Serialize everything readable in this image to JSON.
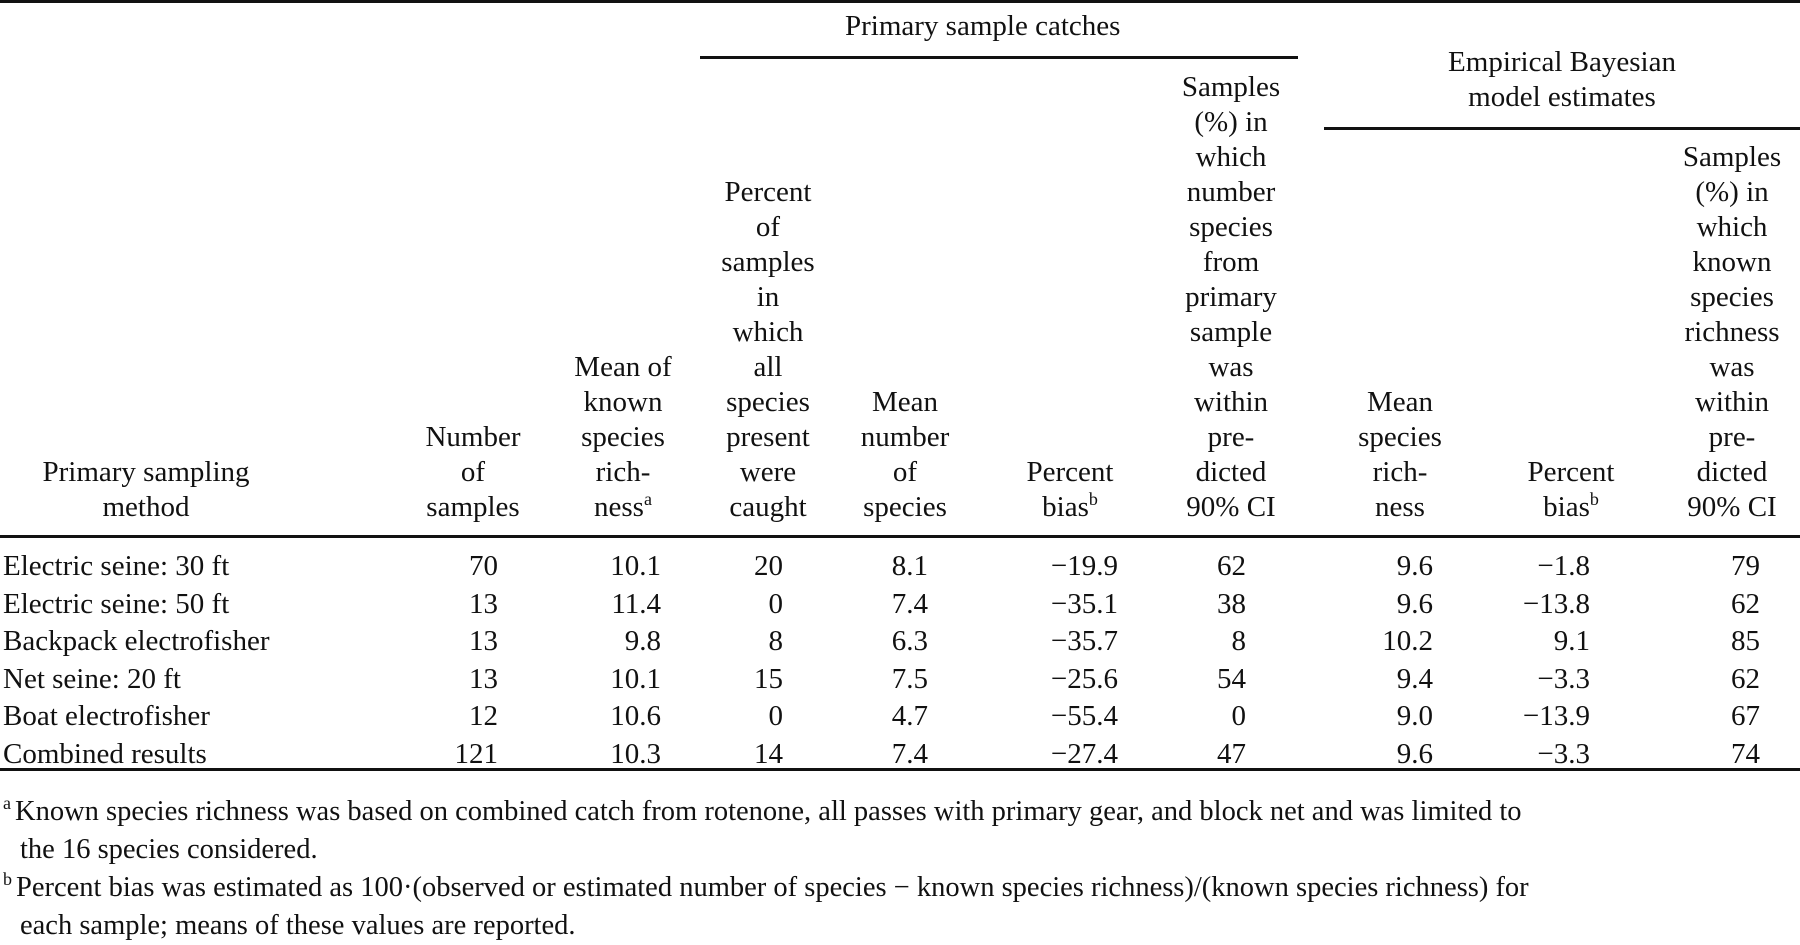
{
  "spanners": {
    "primary": "Primary sample catches",
    "bayes_line1": "Empirical Bayesian",
    "bayes_line2": "model estimates"
  },
  "columns": [
    {
      "lines": [
        "Primary sampling",
        "method"
      ]
    },
    {
      "lines": [
        "Number",
        "of",
        "samples"
      ]
    },
    {
      "lines": [
        "Mean of",
        "known",
        "species",
        "rich-",
        "ness"
      ],
      "sup": "a"
    },
    {
      "lines": [
        "Percent",
        "of",
        "samples",
        "in",
        "which",
        "all",
        "species",
        "present",
        "were",
        "caught"
      ]
    },
    {
      "lines": [
        "Mean",
        "number",
        "of",
        "species"
      ]
    },
    {
      "lines": [
        "Percent",
        "bias"
      ],
      "sup": "b"
    },
    {
      "lines": [
        "Samples",
        "(%) in",
        "which",
        "number",
        "species",
        "from",
        "primary",
        "sample",
        "was",
        "within",
        "pre-",
        "dicted",
        "90% CI"
      ]
    },
    {
      "lines": [
        "Mean",
        "species",
        "rich-",
        "ness"
      ]
    },
    {
      "lines": [
        "Percent",
        "bias"
      ],
      "sup": "b"
    },
    {
      "lines": [
        "Samples",
        "(%) in",
        "which",
        "known",
        "species",
        "richness",
        "was",
        "within",
        "pre-",
        "dicted",
        "90% CI"
      ]
    }
  ],
  "rows": [
    [
      "Electric seine: 30 ft",
      "70",
      "10.1",
      "20",
      "8.1",
      "−19.9",
      "62",
      "9.6",
      "−1.8",
      "79"
    ],
    [
      "Electric seine: 50 ft",
      "13",
      "11.4",
      "0",
      "7.4",
      "−35.1",
      "38",
      "9.6",
      "−13.8",
      "62"
    ],
    [
      "Backpack electrofisher",
      "13",
      "9.8",
      "8",
      "6.3",
      "−35.7",
      "8",
      "10.2",
      "9.1",
      "85"
    ],
    [
      "Net seine: 20 ft",
      "13",
      "10.1",
      "15",
      "7.5",
      "−25.6",
      "54",
      "9.4",
      "−3.3",
      "62"
    ],
    [
      "Boat electrofisher",
      "12",
      "10.6",
      "0",
      "4.7",
      "−55.4",
      "0",
      "9.0",
      "−13.9",
      "67"
    ],
    [
      "Combined results",
      "121",
      "10.3",
      "14",
      "7.4",
      "−27.4",
      "47",
      "9.6",
      "−3.3",
      "74"
    ]
  ],
  "footnotes": {
    "a_mark": "a",
    "a_line1": "Known species richness was based on combined catch from rotenone, all passes with primary gear, and block net and was limited to",
    "a_line2": "the 16 species considered.",
    "b_mark": "b",
    "b_line1": "Percent bias was estimated as 100·(observed or estimated number of species − known species richness)/(known species richness) for",
    "b_line2": "each sample; means of these values are reported."
  }
}
